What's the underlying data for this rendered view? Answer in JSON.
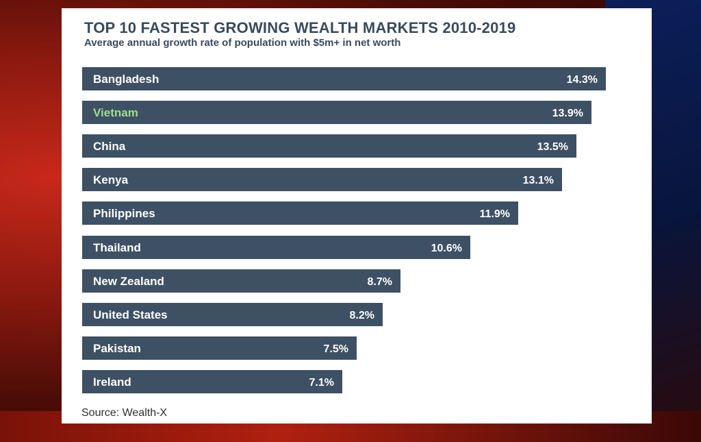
{
  "chart_data": {
    "type": "bar",
    "orientation": "horizontal",
    "title": "TOP 10 FASTEST GROWING WEALTH MARKETS 2010-2019",
    "subtitle": "Average annual growth rate of population with $5m+ in net worth",
    "categories": [
      "Bangladesh",
      "Vietnam",
      "China",
      "Kenya",
      "Philippines",
      "Thailand",
      "New Zealand",
      "United States",
      "Pakistan",
      "Ireland"
    ],
    "values": [
      14.3,
      13.9,
      13.5,
      13.1,
      11.9,
      10.6,
      8.7,
      8.2,
      7.5,
      7.1
    ],
    "value_labels": [
      "14.3%",
      "13.9%",
      "13.5%",
      "13.1%",
      "11.9%",
      "10.6%",
      "8.7%",
      "8.2%",
      "7.5%",
      "7.1%"
    ],
    "unit": "%",
    "xlim": [
      0,
      14.3
    ],
    "source": "Source: Wealth-X"
  },
  "colors": {
    "bar": "#3e5064",
    "label_text": "#ffffff",
    "highlight_label": "#9be08a"
  }
}
